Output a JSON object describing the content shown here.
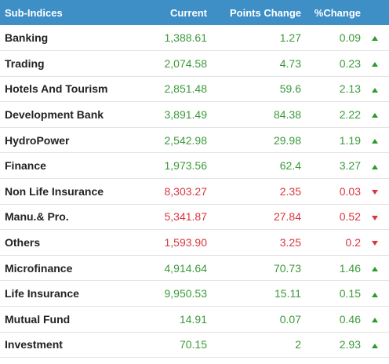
{
  "colors": {
    "header_bg": "#3d8fc6",
    "up": "#3a9a3a",
    "down": "#d9363e",
    "border": "#e3e3e3"
  },
  "header": {
    "name": "Sub-Indices",
    "current": "Current",
    "points_change": "Points Change",
    "pct_change": "%Change"
  },
  "rows": [
    {
      "name": "Banking",
      "current": "1,388.61",
      "points": "1.27",
      "pct": "0.09",
      "dir": "up",
      "icon": "triangle-up-icon"
    },
    {
      "name": "Trading",
      "current": "2,074.58",
      "points": "4.73",
      "pct": "0.23",
      "dir": "up",
      "icon": "triangle-up-icon"
    },
    {
      "name": "Hotels And Tourism",
      "current": "2,851.48",
      "points": "59.6",
      "pct": "2.13",
      "dir": "up",
      "icon": "triangle-up-icon"
    },
    {
      "name": "Development Bank",
      "current": "3,891.49",
      "points": "84.38",
      "pct": "2.22",
      "dir": "up",
      "icon": "triangle-up-icon"
    },
    {
      "name": "HydroPower",
      "current": "2,542.98",
      "points": "29.98",
      "pct": "1.19",
      "dir": "up",
      "icon": "triangle-up-icon"
    },
    {
      "name": "Finance",
      "current": "1,973.56",
      "points": "62.4",
      "pct": "3.27",
      "dir": "up",
      "icon": "triangle-up-icon"
    },
    {
      "name": "Non Life Insurance",
      "current": "8,303.27",
      "points": "2.35",
      "pct": "0.03",
      "dir": "down",
      "icon": "triangle-down-icon"
    },
    {
      "name": "Manu.& Pro.",
      "current": "5,341.87",
      "points": "27.84",
      "pct": "0.52",
      "dir": "down",
      "icon": "triangle-down-icon"
    },
    {
      "name": "Others",
      "current": "1,593.90",
      "points": "3.25",
      "pct": "0.2",
      "dir": "down",
      "icon": "triangle-down-icon"
    },
    {
      "name": "Microfinance",
      "current": "4,914.64",
      "points": "70.73",
      "pct": "1.46",
      "dir": "up",
      "icon": "triangle-up-icon"
    },
    {
      "name": "Life Insurance",
      "current": "9,950.53",
      "points": "15.11",
      "pct": "0.15",
      "dir": "up",
      "icon": "triangle-up-icon"
    },
    {
      "name": "Mutual Fund",
      "current": "14.91",
      "points": "0.07",
      "pct": "0.46",
      "dir": "up",
      "icon": "triangle-up-icon"
    },
    {
      "name": "Investment",
      "current": "70.15",
      "points": "2",
      "pct": "2.93",
      "dir": "up",
      "icon": "triangle-up-icon"
    }
  ]
}
